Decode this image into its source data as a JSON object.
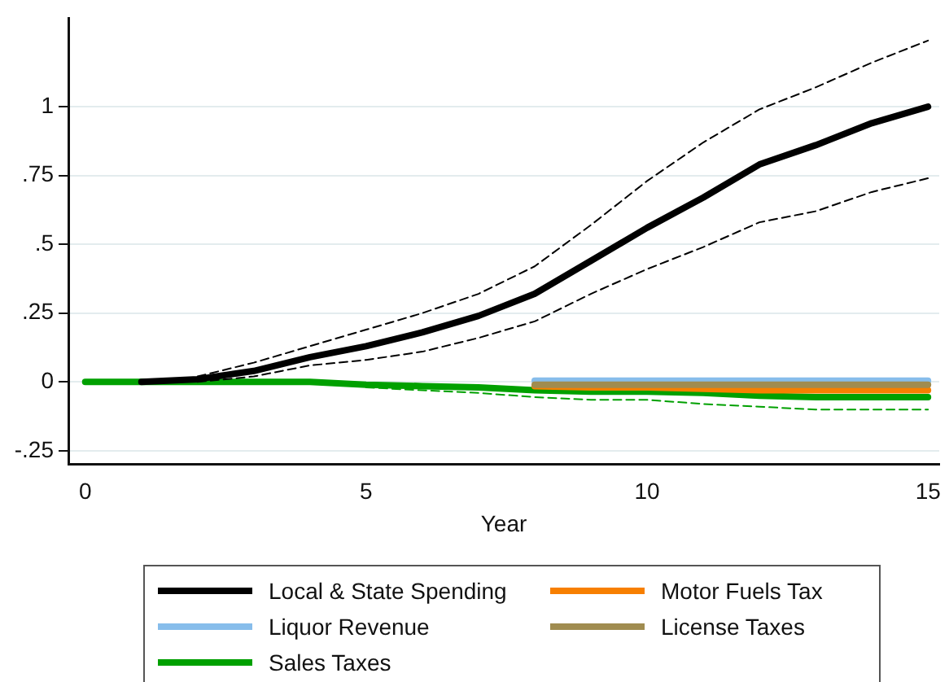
{
  "chart_data": {
    "type": "line",
    "xlabel": "Year",
    "x": [
      0,
      1,
      2,
      3,
      4,
      5,
      6,
      7,
      8,
      9,
      10,
      11,
      12,
      13,
      14,
      15
    ],
    "series": [
      {
        "name": "Local & State Spending",
        "color": "#000000",
        "values": [
          null,
          0,
          0.01,
          0.04,
          0.09,
          0.13,
          0.18,
          0.24,
          0.32,
          0.44,
          0.56,
          0.67,
          0.79,
          0.86,
          0.94,
          1.0
        ]
      },
      {
        "name": "Liquor Revenue",
        "color": "#87bdeb",
        "values": [
          null,
          null,
          null,
          null,
          null,
          null,
          null,
          null,
          0.005,
          0.005,
          0.005,
          0.005,
          0.005,
          0.005,
          0.005,
          0.005
        ]
      },
      {
        "name": "Sales Taxes",
        "color": "#00a000",
        "values": [
          0,
          0,
          0,
          0,
          0,
          -0.01,
          -0.015,
          -0.02,
          -0.03,
          -0.035,
          -0.035,
          -0.04,
          -0.05,
          -0.055,
          -0.055,
          -0.055
        ]
      },
      {
        "name": "Motor Fuels Tax",
        "color": "#f77f00",
        "values": [
          null,
          null,
          null,
          null,
          null,
          null,
          null,
          null,
          -0.015,
          -0.02,
          -0.02,
          -0.025,
          -0.03,
          -0.03,
          -0.03,
          -0.03
        ]
      },
      {
        "name": "License Taxes",
        "color": "#a08c50",
        "values": [
          null,
          null,
          null,
          null,
          null,
          null,
          null,
          null,
          -0.01,
          -0.01,
          -0.01,
          -0.01,
          -0.01,
          -0.01,
          -0.01,
          -0.01
        ]
      },
      {
        "color": "#000000",
        "line_style": "dashed",
        "values": [
          null,
          null,
          0.02,
          0.07,
          0.13,
          0.19,
          0.25,
          0.32,
          0.42,
          0.57,
          0.73,
          0.87,
          0.99,
          1.07,
          1.16,
          1.24
        ]
      },
      {
        "color": "#000000",
        "line_style": "dashed",
        "values": [
          null,
          null,
          0,
          0.02,
          0.06,
          0.08,
          0.11,
          0.16,
          0.22,
          0.32,
          0.41,
          0.49,
          0.58,
          0.62,
          0.69,
          0.74
        ]
      },
      {
        "color": "#00a000",
        "line_style": "dashed",
        "values": [
          null,
          null,
          null,
          null,
          null,
          -0.02,
          -0.03,
          -0.04,
          -0.055,
          -0.065,
          -0.065,
          -0.08,
          -0.09,
          -0.1,
          -0.1,
          -0.1
        ]
      }
    ],
    "xlim": [
      -0.3,
      15.2
    ],
    "xticks": [
      0,
      5,
      10,
      15
    ],
    "ylim": [
      -0.3,
      1.32
    ],
    "yticks": [
      {
        "value": -0.25,
        "label": "-.25"
      },
      0,
      {
        "value": 0.25,
        "label": ".25"
      },
      {
        "value": 0.5,
        "label": ".5"
      },
      {
        "value": 0.75,
        "label": ".75"
      },
      1
    ],
    "grid": "y",
    "legend": "bottom",
    "line_style": "solid",
    "marker": "none"
  }
}
